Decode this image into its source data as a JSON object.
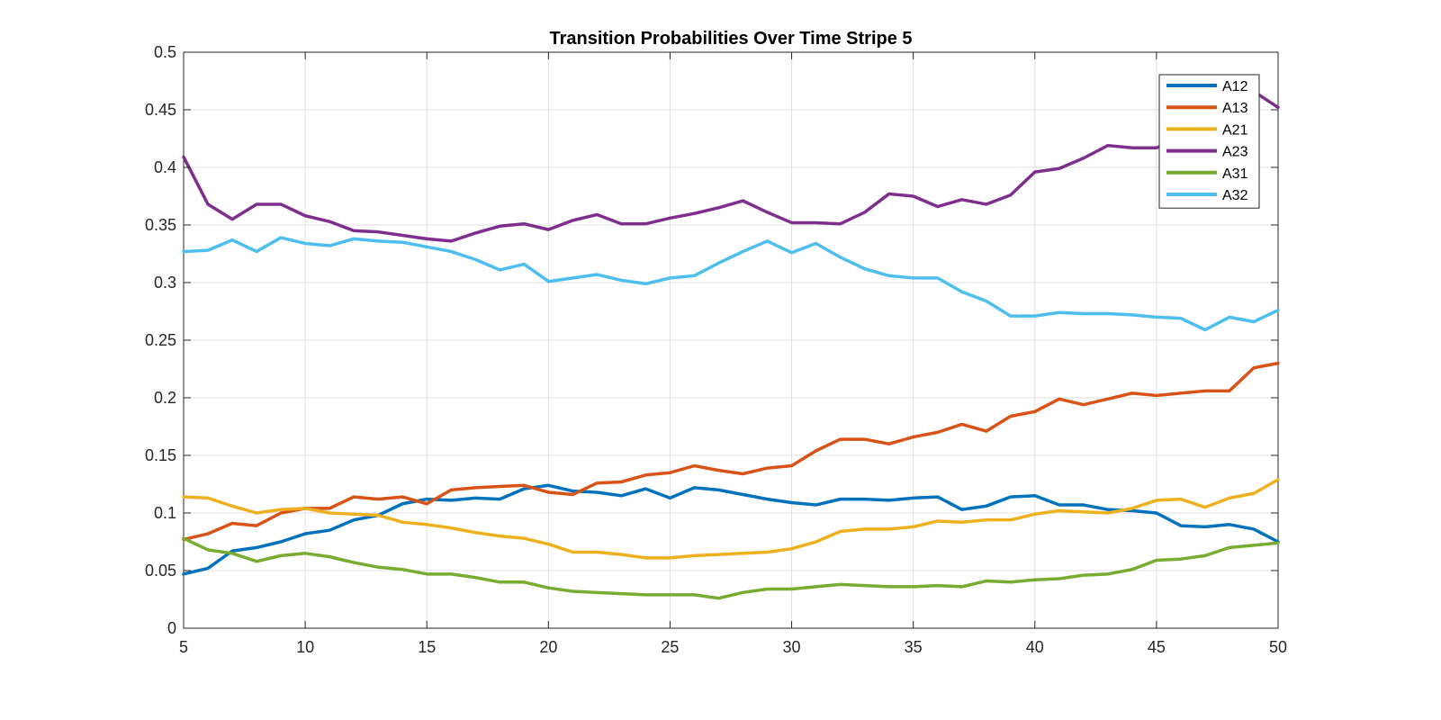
{
  "chart_data": {
    "type": "line",
    "title": "Transition Probabilities Over Time Stripe 5",
    "xlabel": "",
    "ylabel": "",
    "xlim": [
      5,
      50
    ],
    "ylim": [
      0,
      0.5
    ],
    "x_ticks": [
      5,
      10,
      15,
      20,
      25,
      30,
      35,
      40,
      45,
      50
    ],
    "y_ticks": [
      0,
      0.05,
      0.1,
      0.15,
      0.2,
      0.25,
      0.3,
      0.35,
      0.4,
      0.45,
      0.5
    ],
    "grid": true,
    "legend_position": "top-right",
    "x": [
      5,
      6,
      7,
      8,
      9,
      10,
      11,
      12,
      13,
      14,
      15,
      16,
      17,
      18,
      19,
      20,
      21,
      22,
      23,
      24,
      25,
      26,
      27,
      28,
      29,
      30,
      31,
      32,
      33,
      34,
      35,
      36,
      37,
      38,
      39,
      40,
      41,
      42,
      43,
      44,
      45,
      46,
      47,
      48,
      49,
      50
    ],
    "series": [
      {
        "name": "A12",
        "color": "#0072BD",
        "values": [
          0.047,
          0.052,
          0.067,
          0.07,
          0.075,
          0.082,
          0.085,
          0.094,
          0.098,
          0.108,
          0.112,
          0.111,
          0.113,
          0.112,
          0.121,
          0.124,
          0.119,
          0.118,
          0.115,
          0.121,
          0.113,
          0.122,
          0.12,
          0.116,
          0.112,
          0.109,
          0.107,
          0.112,
          0.112,
          0.111,
          0.113,
          0.114,
          0.103,
          0.106,
          0.114,
          0.115,
          0.107,
          0.107,
          0.103,
          0.102,
          0.1,
          0.089,
          0.088,
          0.09,
          0.086,
          0.075
        ]
      },
      {
        "name": "A13",
        "color": "#D95319",
        "values": [
          0.077,
          0.082,
          0.091,
          0.089,
          0.1,
          0.104,
          0.104,
          0.114,
          0.112,
          0.114,
          0.108,
          0.12,
          0.122,
          0.123,
          0.124,
          0.118,
          0.116,
          0.126,
          0.127,
          0.133,
          0.135,
          0.141,
          0.137,
          0.134,
          0.139,
          0.141,
          0.154,
          0.164,
          0.164,
          0.16,
          0.166,
          0.17,
          0.177,
          0.171,
          0.184,
          0.188,
          0.199,
          0.194,
          0.199,
          0.204,
          0.202,
          0.204,
          0.206,
          0.206,
          0.226,
          0.23
        ]
      },
      {
        "name": "A21",
        "color": "#EDB120",
        "values": [
          0.114,
          0.113,
          0.106,
          0.1,
          0.103,
          0.104,
          0.1,
          0.099,
          0.098,
          0.092,
          0.09,
          0.087,
          0.083,
          0.08,
          0.078,
          0.073,
          0.066,
          0.066,
          0.064,
          0.061,
          0.061,
          0.063,
          0.064,
          0.065,
          0.066,
          0.069,
          0.075,
          0.084,
          0.086,
          0.086,
          0.088,
          0.093,
          0.092,
          0.094,
          0.094,
          0.099,
          0.102,
          0.101,
          0.1,
          0.104,
          0.111,
          0.112,
          0.105,
          0.113,
          0.117,
          0.129
        ]
      },
      {
        "name": "A23",
        "color": "#7E2F8E",
        "values": [
          0.409,
          0.368,
          0.355,
          0.368,
          0.368,
          0.358,
          0.353,
          0.345,
          0.344,
          0.341,
          0.338,
          0.336,
          0.343,
          0.349,
          0.351,
          0.346,
          0.354,
          0.359,
          0.351,
          0.351,
          0.356,
          0.36,
          0.365,
          0.371,
          0.361,
          0.352,
          0.352,
          0.351,
          0.361,
          0.377,
          0.375,
          0.366,
          0.372,
          0.368,
          0.376,
          0.396,
          0.399,
          0.408,
          0.419,
          0.417,
          0.417,
          0.425,
          0.432,
          0.456,
          0.466,
          0.452
        ]
      },
      {
        "name": "A31",
        "color": "#77AC30",
        "values": [
          0.078,
          0.068,
          0.065,
          0.058,
          0.063,
          0.065,
          0.062,
          0.057,
          0.053,
          0.051,
          0.047,
          0.047,
          0.044,
          0.04,
          0.04,
          0.035,
          0.032,
          0.031,
          0.03,
          0.029,
          0.029,
          0.029,
          0.026,
          0.031,
          0.034,
          0.034,
          0.036,
          0.038,
          0.037,
          0.036,
          0.036,
          0.037,
          0.036,
          0.041,
          0.04,
          0.042,
          0.043,
          0.046,
          0.047,
          0.051,
          0.059,
          0.06,
          0.063,
          0.07,
          0.072,
          0.074
        ]
      },
      {
        "name": "A32",
        "color": "#4DBEEE",
        "values": [
          0.327,
          0.328,
          0.337,
          0.327,
          0.339,
          0.334,
          0.332,
          0.338,
          0.336,
          0.335,
          0.331,
          0.327,
          0.32,
          0.311,
          0.316,
          0.301,
          0.304,
          0.307,
          0.302,
          0.299,
          0.304,
          0.306,
          0.317,
          0.327,
          0.336,
          0.326,
          0.334,
          0.322,
          0.312,
          0.306,
          0.304,
          0.304,
          0.292,
          0.284,
          0.271,
          0.271,
          0.274,
          0.273,
          0.273,
          0.272,
          0.27,
          0.269,
          0.259,
          0.27,
          0.266,
          0.276
        ]
      }
    ]
  }
}
